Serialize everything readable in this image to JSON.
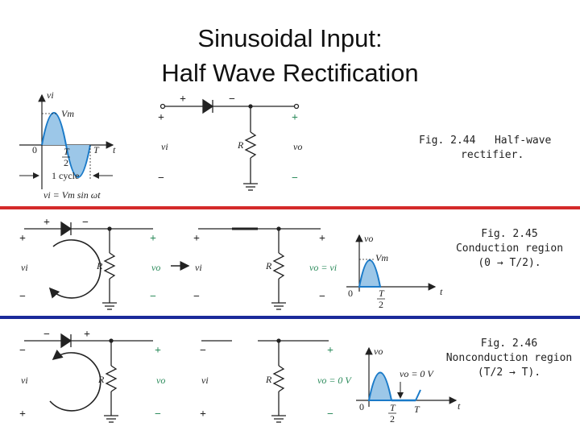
{
  "title": {
    "line1": "Sinusoidal Input:",
    "line2": "Half Wave Rectification"
  },
  "colors": {
    "divider_red": "#d42a2a",
    "divider_blue": "#1a2a9a",
    "wave_fill": "#9cc7e8",
    "wave_stroke": "#1a7ac8",
    "circuit": "#222222"
  },
  "fig244": {
    "num": "Fig. 2.44",
    "text1": "Half-wave",
    "text2": "rectifier.",
    "input_wave": {
      "vi": "vi",
      "vm": "Vm",
      "zero": "0",
      "t2_num": "T",
      "t2_den": "2",
      "t": "T",
      "taxis": "t",
      "cycle": "1 cycle",
      "formula": "vi = Vm sin ωt"
    },
    "circuit": {
      "plus_in": "+",
      "minus_in": "−",
      "vi": "vi",
      "r": "R",
      "vo": "vo",
      "plus_out": "+",
      "minus_out": "−",
      "diode_plus": "+",
      "diode_minus": "−"
    }
  },
  "fig245": {
    "num": "Fig. 2.45",
    "line1": "Conduction region",
    "line2": "(0 → T/2).",
    "left": {
      "plus": "+",
      "minus": "−",
      "vi": "vi",
      "r": "R",
      "vo": "vo",
      "plus_out": "+",
      "minus_out": "−",
      "diode_plus": "+",
      "diode_minus": "−"
    },
    "right": {
      "plus": "+",
      "minus": "−",
      "vi": "vi",
      "r": "R",
      "vo": "vo = vi",
      "plus_out": "+",
      "minus_out": "−"
    },
    "graph": {
      "vo": "vo",
      "vm": "Vm",
      "zero": "0",
      "t2_num": "T",
      "t2_den": "2",
      "taxis": "t"
    }
  },
  "fig246": {
    "num": "Fig. 2.46",
    "line1": "Nonconduction region",
    "line2": "(T/2 → T).",
    "left": {
      "plus": "+",
      "minus": "−",
      "vi": "vi",
      "r": "R",
      "vo": "vo",
      "plus_out": "+",
      "minus_out": "−",
      "diode_plus": "+",
      "diode_minus": "−"
    },
    "right": {
      "plus": "+",
      "minus": "−",
      "vi": "vi",
      "r": "R",
      "vo": "vo = 0 V",
      "plus_out": "+",
      "minus_out": "−"
    },
    "graph": {
      "vo": "vo",
      "vo0": "vo = 0 V",
      "zero": "0",
      "t2_num": "T",
      "t2_den": "2",
      "t": "T",
      "taxis": "t"
    }
  }
}
